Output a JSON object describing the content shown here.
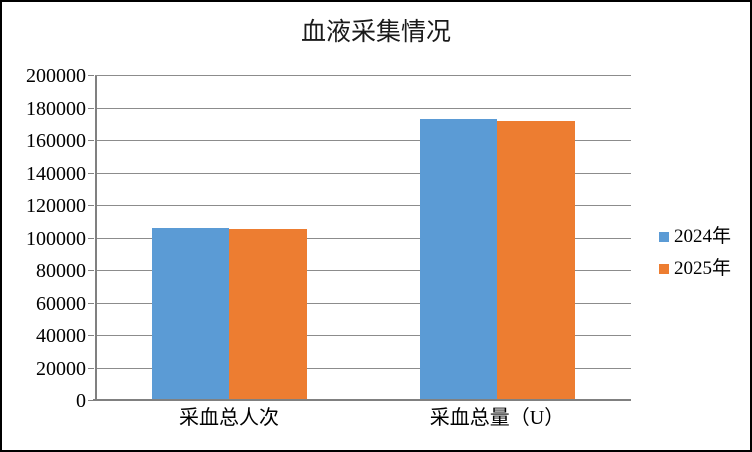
{
  "window": {
    "background": "#FFFFFF",
    "border_color": "#000000"
  },
  "colors": {
    "axis": "#808080",
    "gridline": "#8C8C8C",
    "text": "#000000",
    "series_2024": "#5B9BD5",
    "series_2025": "#ED7D31"
  },
  "chart_data": {
    "type": "bar",
    "title": "血液采集情况",
    "categories": [
      "采血总人次",
      "采血总量（U）"
    ],
    "series": [
      {
        "name": "2024年",
        "color": "#5B9BD5",
        "values": [
          105000,
          172300
        ]
      },
      {
        "name": "2025年",
        "color": "#ED7D31",
        "values": [
          104600,
          171000
        ]
      }
    ],
    "xlabel": "",
    "ylabel": "",
    "ylim": [
      0,
      200000
    ],
    "ytick_step": 20000,
    "ytick_labels": [
      "0",
      "20000",
      "40000",
      "60000",
      "80000",
      "100000",
      "120000",
      "140000",
      "160000",
      "180000",
      "200000"
    ],
    "grid": true,
    "legend_position": "right"
  }
}
